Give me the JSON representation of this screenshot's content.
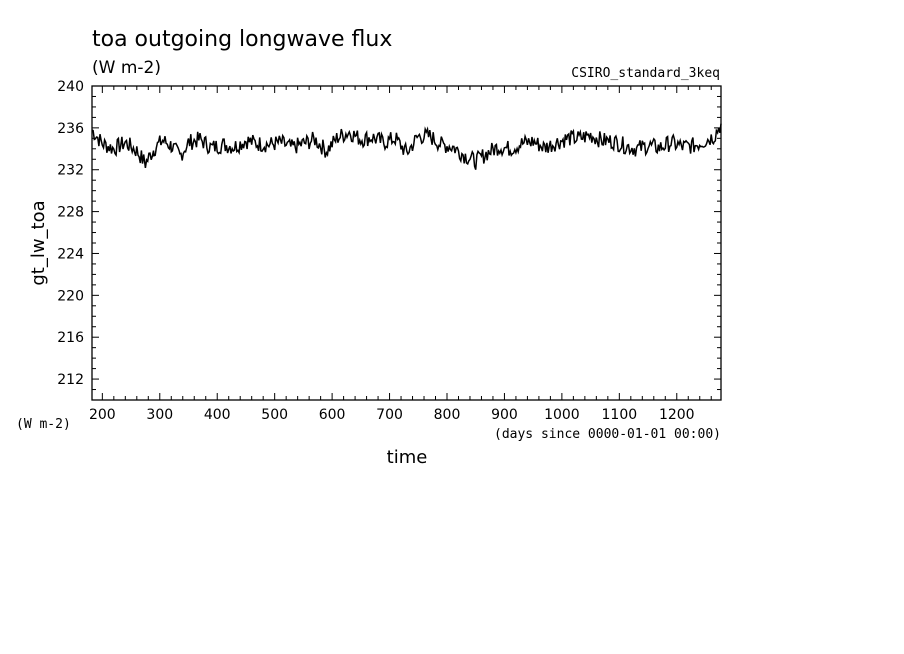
{
  "chart_data": {
    "type": "line",
    "title": "toa outgoing longwave flux",
    "units": "(W m-2)",
    "run_label": "CSIRO_standard_3keq",
    "ylabel": "gt_lw_toa",
    "y_units_label": "(W m-2)",
    "xlabel": "time",
    "x_units_label": "(days since 0000-01-01 00:00)",
    "xlim": [
      182,
      1277
    ],
    "ylim": [
      210,
      240
    ],
    "x_ticks": [
      200,
      300,
      400,
      500,
      600,
      700,
      800,
      900,
      1000,
      1100,
      1200
    ],
    "y_ticks": [
      212,
      216,
      220,
      224,
      228,
      232,
      236,
      240
    ],
    "grid": false,
    "series": [
      {
        "color": "#000000",
        "x": [
          182,
          200,
          220,
          240,
          260,
          275,
          290,
          305,
          320,
          335,
          350,
          370,
          390,
          410,
          430,
          450,
          470,
          490,
          510,
          530,
          550,
          570,
          590,
          610,
          630,
          650,
          670,
          690,
          710,
          730,
          750,
          770,
          790,
          810,
          830,
          850,
          870,
          890,
          910,
          930,
          950,
          970,
          990,
          1010,
          1030,
          1050,
          1070,
          1090,
          1110,
          1130,
          1150,
          1170,
          1190,
          1210,
          1230,
          1250,
          1265,
          1277
        ],
        "y": [
          235.8,
          234.5,
          234.0,
          234.6,
          233.8,
          232.6,
          234.0,
          234.8,
          234.3,
          233.3,
          234.6,
          234.9,
          234.1,
          234.4,
          234.2,
          234.8,
          234.5,
          234.4,
          234.6,
          234.1,
          234.5,
          234.9,
          233.8,
          235.1,
          235.6,
          234.9,
          235.1,
          234.6,
          235.0,
          233.6,
          235.2,
          235.2,
          234.4,
          234.2,
          233.4,
          232.8,
          233.6,
          234.2,
          234.0,
          234.5,
          234.7,
          234.1,
          234.6,
          235.0,
          235.0,
          235.3,
          234.8,
          234.7,
          234.3,
          234.0,
          234.3,
          234.1,
          234.6,
          234.2,
          234.3,
          234.8,
          235.2,
          236.4
        ]
      }
    ]
  }
}
